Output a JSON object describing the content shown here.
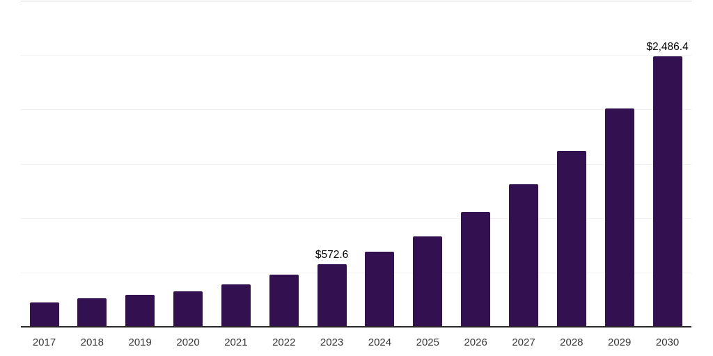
{
  "chart_data": {
    "type": "bar",
    "title": "",
    "xlabel": "",
    "ylabel": "",
    "categories": [
      "2017",
      "2018",
      "2019",
      "2020",
      "2021",
      "2022",
      "2023",
      "2024",
      "2025",
      "2026",
      "2027",
      "2028",
      "2029",
      "2030"
    ],
    "values": [
      224,
      263,
      292,
      326,
      390,
      480,
      572.6,
      694,
      833,
      1056,
      1311,
      1620,
      2007,
      2486.4
    ],
    "value_labels": [
      "",
      "",
      "",
      "",
      "",
      "",
      "$572.6",
      "",
      "",
      "",
      "",
      "",
      "",
      "$2,486.4"
    ],
    "ylim": [
      0,
      3000
    ],
    "gridline_step": 500,
    "grid": true,
    "legend": false,
    "y_tick_labels_visible": false,
    "colors": {
      "bar": "#331150",
      "axis_line": "#262626",
      "gridline": "#f2f2f2",
      "top_gridline": "#d6d6d6",
      "value_label": "#000000",
      "tick_label": "#363636",
      "background": "#ffffff"
    }
  }
}
